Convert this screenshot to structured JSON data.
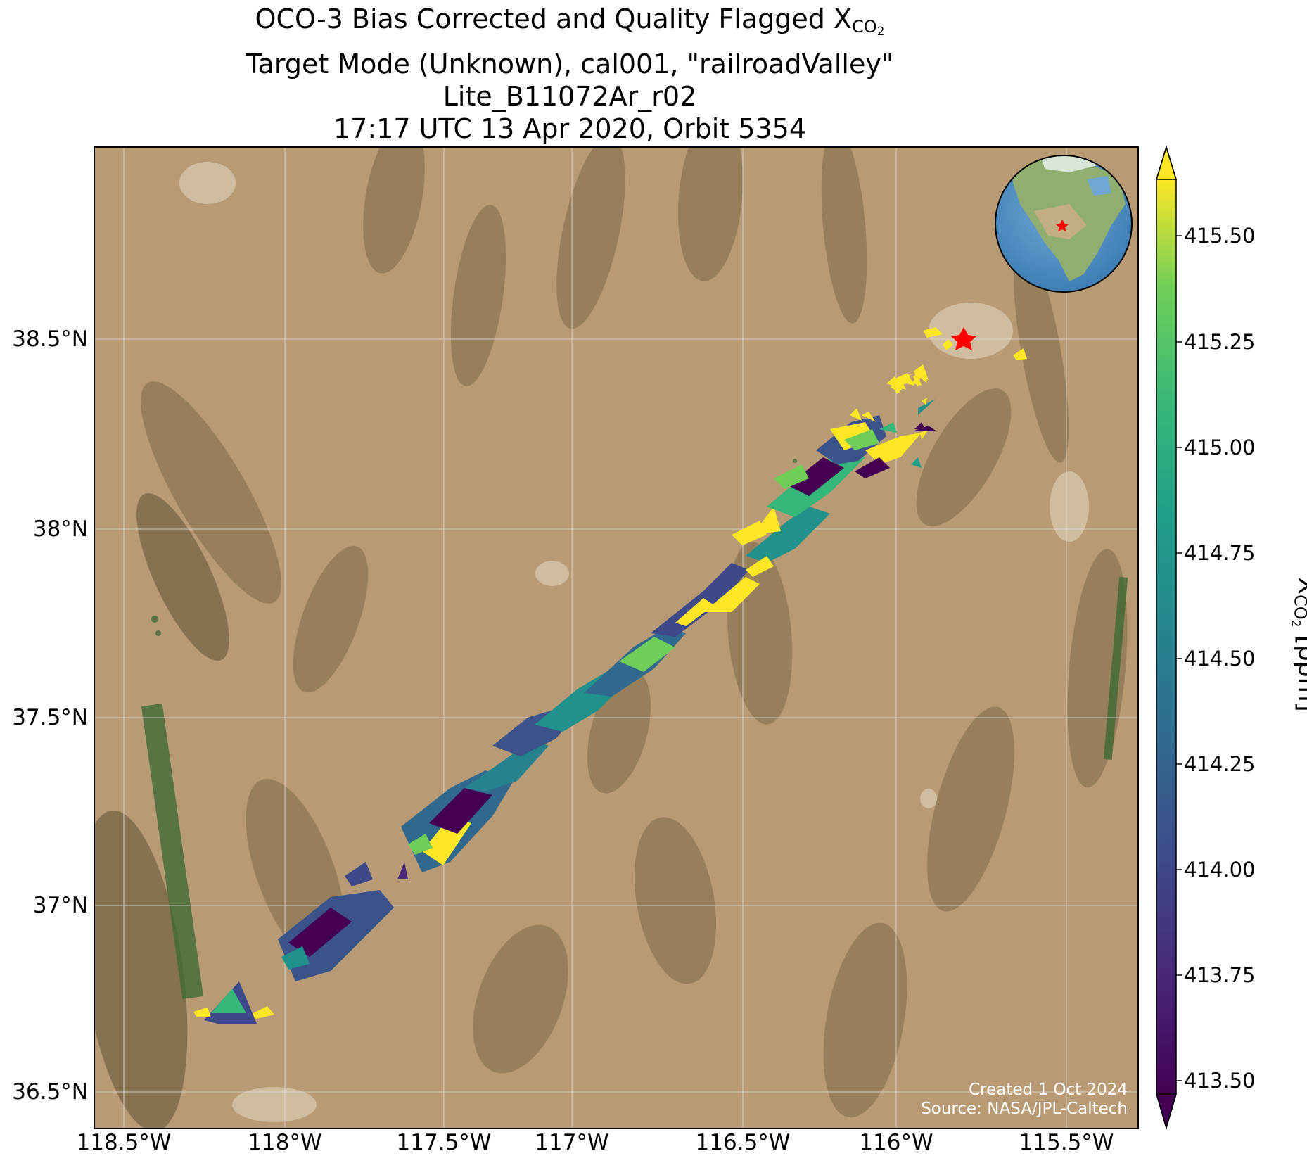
{
  "title": {
    "line1_prefix": "OCO-3 Bias Corrected and Quality Flagged X",
    "line1_sub": "CO",
    "line1_subsub": "2",
    "line2": "Target Mode (Unknown), cal001, \"railroadValley\"",
    "line3": "Lite_B11072Ar_r02",
    "line4": "17:17 UTC 13 Apr 2020, Orbit 5354"
  },
  "map": {
    "lon_ticks": [
      "118.5°W",
      "118°W",
      "117.5°W",
      "117°W",
      "116.5°W",
      "116°W",
      "115.5°W"
    ],
    "lat_ticks": [
      "38.5°N",
      "38°N",
      "37.5°N",
      "37°N",
      "36.5°N"
    ],
    "target_marker": "red-star",
    "inset_globe": "globe-locator-north-america",
    "credit_line1": "Created 1 Oct 2024",
    "credit_line2": "Source: NASA/JPL-Caltech"
  },
  "colorbar": {
    "label_prefix": "X",
    "label_sub": "CO",
    "label_subsub": "2",
    "label_unit": " [ppm]",
    "colormap": "viridis",
    "ticks": [
      "415.50",
      "415.25",
      "415.00",
      "414.75",
      "414.50",
      "414.25",
      "414.00",
      "413.75",
      "413.50"
    ],
    "range": [
      413.5,
      415.6
    ],
    "extend": "both"
  },
  "colors": {
    "viridis_low": "#440154",
    "viridis_mid": "#21918c",
    "viridis_high": "#fde725",
    "terrain": "#b89a74",
    "marker": "#ff0000"
  }
}
